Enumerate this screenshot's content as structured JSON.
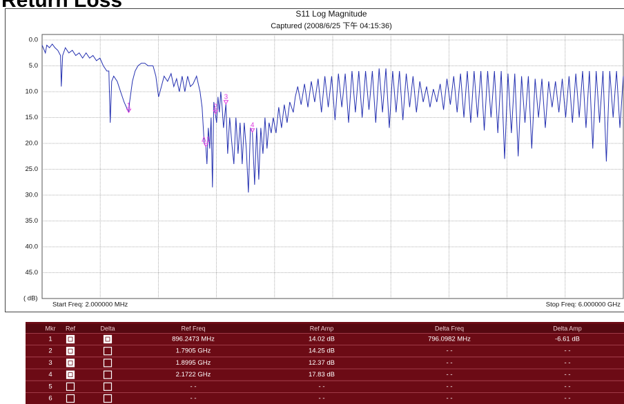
{
  "header": {
    "title": "Return Loss"
  },
  "chart_data": {
    "type": "line",
    "title": "S11 Log Magnitude",
    "subtitle": "Captured  (2008/6/25 下午 04:15:36)",
    "y_label": "( dB)",
    "start_label": "Start Freq: 2.000000 MHz",
    "stop_label": "Stop Freq: 6.000000 GHz",
    "color": "#2430b0",
    "marker_color": "#e03ce0",
    "grid": true,
    "y_inverted": true,
    "xlim": [
      2,
      6000
    ],
    "ylim": [
      0,
      50
    ],
    "yticks": [
      {
        "value": 0,
        "label": "0.0"
      },
      {
        "value": 5,
        "label": "5.0"
      },
      {
        "value": 10,
        "label": "10.0"
      },
      {
        "value": 15,
        "label": "15.0"
      },
      {
        "value": 20,
        "label": "20.0"
      },
      {
        "value": 25,
        "label": "25.0"
      },
      {
        "value": 30,
        "label": "30.0"
      },
      {
        "value": 35,
        "label": "35.0"
      },
      {
        "value": 40,
        "label": "40.0"
      },
      {
        "value": 45,
        "label": "45.0"
      }
    ],
    "x": [
      2,
      36,
      50,
      78,
      107,
      135,
      164,
      192,
      200,
      214,
      242,
      278,
      314,
      349,
      385,
      420,
      456,
      492,
      527,
      563,
      599,
      634,
      670,
      691,
      705,
      720,
      741,
      777,
      812,
      848,
      896,
      905,
      934,
      962,
      991,
      1026,
      1062,
      1097,
      1147,
      1176,
      1204,
      1233,
      1261,
      1297,
      1333,
      1361,
      1390,
      1418,
      1447,
      1475,
      1504,
      1532,
      1560,
      1596,
      1632,
      1653,
      1675,
      1692,
      1703,
      1717,
      1732,
      1746,
      1760,
      1774,
      1790,
      1803,
      1817,
      1831,
      1846,
      1860,
      1874,
      1899,
      1917,
      1938,
      1960,
      1981,
      2002,
      2024,
      2045,
      2067,
      2088,
      2109,
      2131,
      2152,
      2172,
      2195,
      2216,
      2238,
      2259,
      2281,
      2302,
      2323,
      2344,
      2366,
      2387,
      2416,
      2444,
      2473,
      2501,
      2530,
      2558,
      2594,
      2615,
      2640,
      2675,
      2710,
      2745,
      2780,
      2815,
      2850,
      2885,
      2920,
      2955,
      2990,
      3025,
      3060,
      3095,
      3130,
      3165,
      3200,
      3235,
      3270,
      3305,
      3340,
      3375,
      3410,
      3445,
      3480,
      3515,
      3550,
      3585,
      3620,
      3655,
      3690,
      3725,
      3760,
      3795,
      3830,
      3865,
      3900,
      3935,
      3970,
      4005,
      4040,
      4075,
      4110,
      4145,
      4180,
      4215,
      4250,
      4285,
      4320,
      4355,
      4390,
      4425,
      4460,
      4495,
      4530,
      4565,
      4600,
      4635,
      4670,
      4705,
      4740,
      4775,
      4810,
      4845,
      4880,
      4915,
      4950,
      4985,
      5020,
      5055,
      5090,
      5125,
      5160,
      5195,
      5230,
      5265,
      5300,
      5335,
      5370,
      5405,
      5440,
      5475,
      5510,
      5545,
      5580,
      5615,
      5650,
      5685,
      5720,
      5755,
      5790,
      5825,
      5860,
      5895,
      5930,
      5965,
      6000
    ],
    "values": [
      1,
      2.5,
      1,
      1.5,
      0.8,
      1.5,
      2,
      3,
      9,
      3,
      1.5,
      2.5,
      2,
      3,
      2.5,
      3.5,
      2.5,
      3.5,
      3,
      4,
      3.5,
      5,
      6,
      6,
      16,
      8,
      7,
      8,
      10,
      12,
      14.02,
      12,
      8,
      6,
      5,
      4.5,
      4.5,
      5,
      5,
      7,
      11,
      9,
      7,
      8,
      6.5,
      9,
      7.5,
      10,
      7,
      10,
      7,
      9,
      8.5,
      7,
      10,
      13,
      20,
      20.6,
      24,
      17,
      21,
      15,
      28.5,
      12,
      14.25,
      16,
      11,
      14,
      10,
      13,
      17,
      12.37,
      22,
      15,
      20,
      24,
      15,
      22,
      16,
      24,
      16,
      21,
      29.5,
      17,
      17.83,
      28,
      17,
      27,
      17,
      22,
      15,
      21,
      16,
      18,
      15,
      18,
      13,
      17,
      12.5,
      16,
      12,
      14,
      11,
      9,
      12.5,
      8.5,
      13,
      8,
      12,
      7.5,
      14,
      7,
      13,
      7,
      15.5,
      6.5,
      13,
      6.5,
      16,
      6,
      14,
      6,
      15,
      6,
      13.5,
      6,
      16,
      5.5,
      14,
      5.5,
      17,
      6,
      14,
      6,
      15.5,
      6.5,
      13,
      7,
      14,
      8,
      12,
      9,
      13,
      9.5,
      12,
      8.5,
      13.5,
      7.5,
      12.5,
      7,
      14,
      6.5,
      15,
      6,
      16,
      6,
      15,
      6,
      17.5,
      6,
      15,
      6,
      18,
      6,
      23,
      6.5,
      18,
      6.5,
      22.5,
      7,
      16,
      7,
      21,
      7.5,
      15,
      7.5,
      17,
      8,
      13,
      8,
      14,
      7.5,
      15,
      7,
      16,
      6.5,
      15,
      6,
      17,
      6,
      21,
      6,
      16,
      6,
      23.5,
      6,
      15,
      6,
      17,
      7
    ],
    "markers": [
      {
        "label": "1",
        "x": 896.2473,
        "y": 14.02,
        "delta_label": "Δ1",
        "delta_x": 796.0982,
        "delta_y": -6.61
      },
      {
        "label": "2",
        "x": 1790.5,
        "y": 14.25
      },
      {
        "label": "3",
        "x": 1899.5,
        "y": 12.37
      },
      {
        "label": "4",
        "x": 2172.2,
        "y": 17.83
      }
    ]
  },
  "table": {
    "columns": [
      "Mkr",
      "Ref",
      "Delta",
      "Ref Freq",
      "Ref Amp",
      "Delta Freq",
      "Delta Amp"
    ],
    "rows": [
      [
        "1",
        true,
        true,
        "896.2473 MHz",
        "14.02 dB",
        "796.0982 MHz",
        "-6.61 dB"
      ],
      [
        "2",
        true,
        false,
        "1.7905 GHz",
        "14.25 dB",
        "- -",
        "- -"
      ],
      [
        "3",
        true,
        false,
        "1.8995 GHz",
        "12.37 dB",
        "- -",
        "- -"
      ],
      [
        "4",
        true,
        false,
        "2.1722 GHz",
        "17.83 dB",
        "- -",
        "- -"
      ],
      [
        "5",
        false,
        false,
        "- -",
        "- -",
        "- -",
        "- -"
      ],
      [
        "6",
        false,
        false,
        "- -",
        "- -",
        "- -",
        "- -"
      ]
    ]
  }
}
